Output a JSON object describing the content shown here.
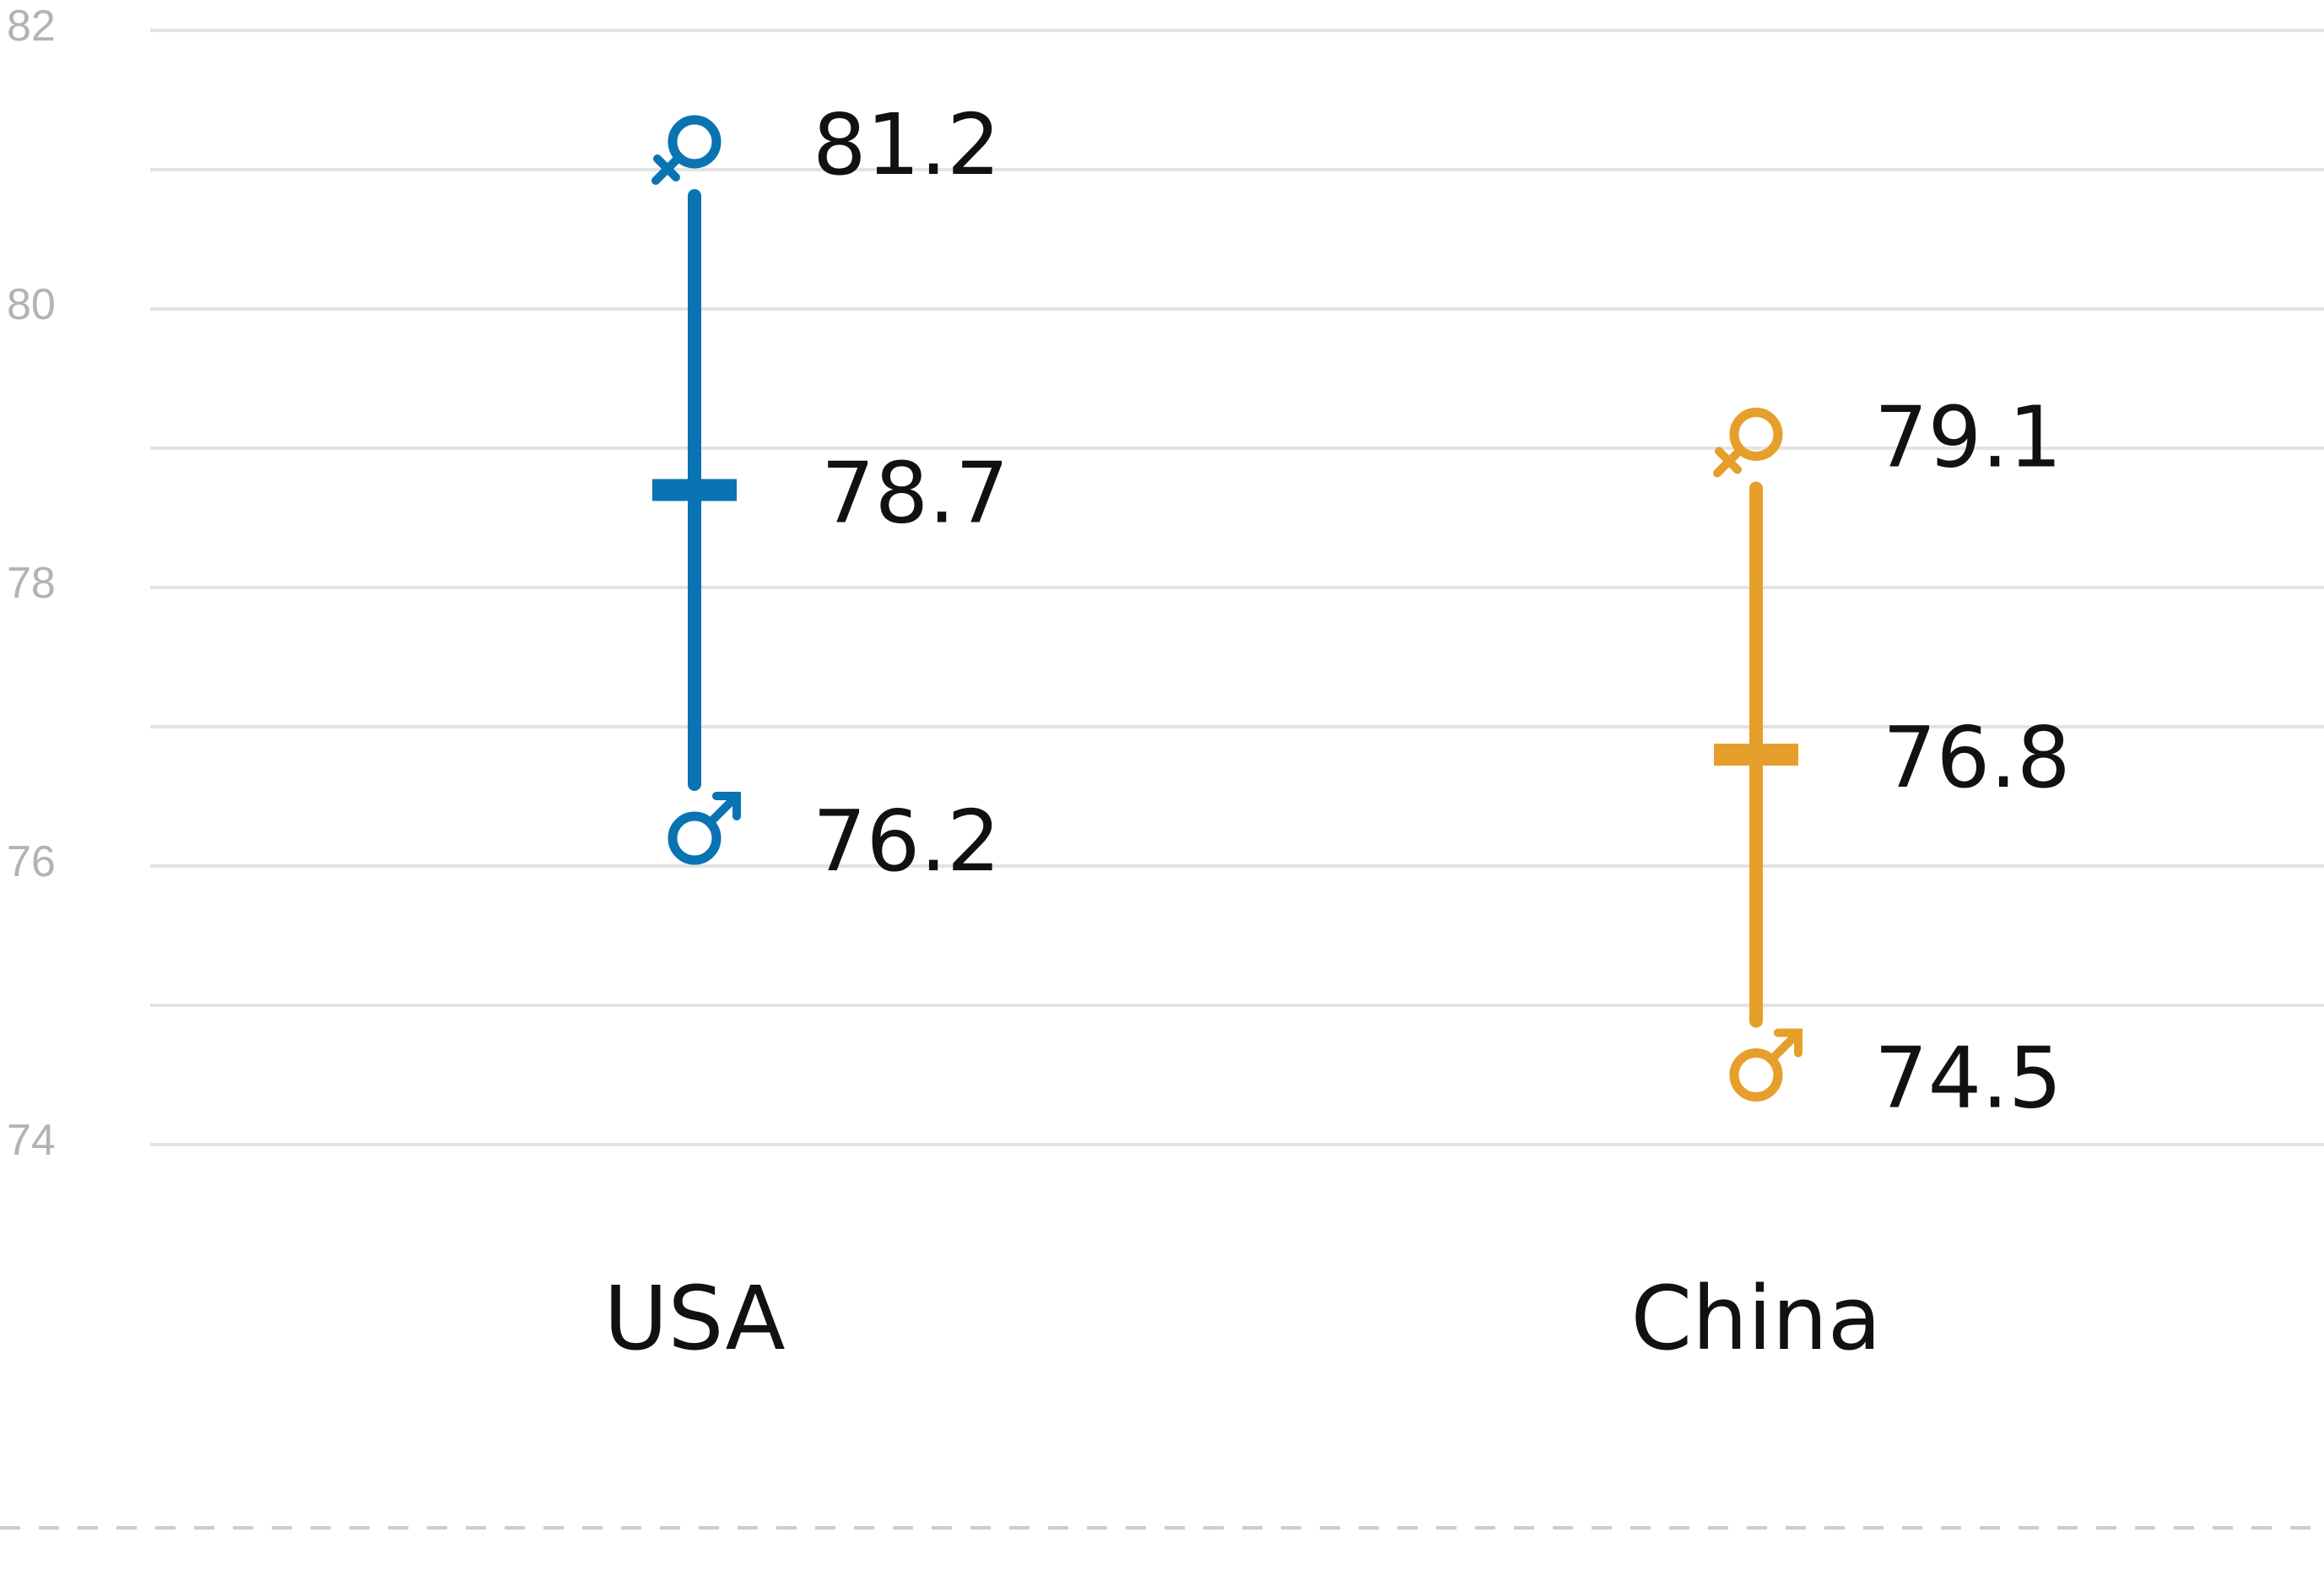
{
  "chart_data": {
    "type": "range",
    "categories": [
      "USA",
      "China"
    ],
    "colors": [
      "#0a73b2",
      "#e69f2b"
    ],
    "series": [
      {
        "values": [
          81.2,
          79.1
        ],
        "marker": "female-symbol-icon"
      },
      {
        "values": [
          78.7,
          76.8
        ],
        "marker": "tick-mark"
      },
      {
        "values": [
          76.2,
          74.5
        ],
        "marker": "male-symbol-icon"
      }
    ],
    "ytick_values": [
      74,
      76,
      78,
      80,
      82
    ],
    "ylim": [
      74,
      82
    ],
    "grid": true
  }
}
